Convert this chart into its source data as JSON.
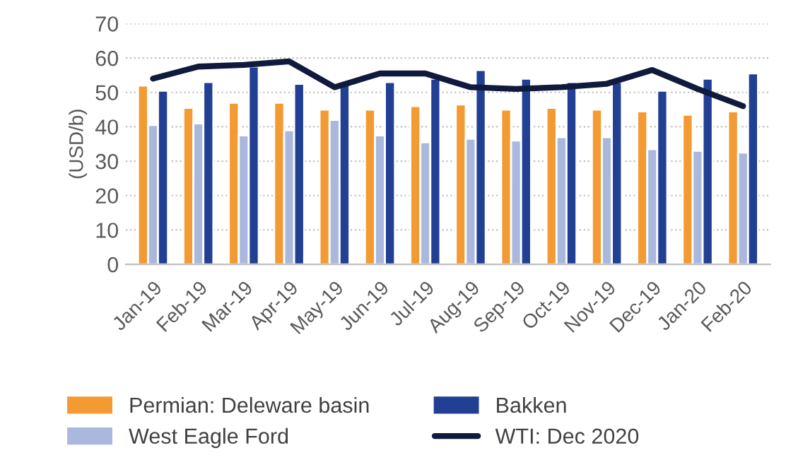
{
  "chart_data": {
    "type": "bar",
    "ylabel": "(USD/b)",
    "categories": [
      "Jan-19",
      "Feb-19",
      "Mar-19",
      "Apr-19",
      "May-19",
      "Jun-19",
      "Jul-19",
      "Aug-19",
      "Sep-19",
      "Oct-19",
      "Nov-19",
      "Dec-19",
      "Jan-20",
      "Feb-20"
    ],
    "series": [
      {
        "name": "Permian: Deleware basin",
        "color": "#f39a32",
        "values": [
          52,
          45.5,
          47,
          47,
          45,
          45,
          46,
          46.5,
          45,
          45.5,
          45,
          44.5,
          43.5,
          44.5
        ]
      },
      {
        "name": "West Eagle Ford",
        "color": "#a9b8dc",
        "values": [
          40.5,
          41,
          37.5,
          39,
          42,
          37.5,
          35.5,
          36.5,
          36,
          37,
          37,
          33.5,
          33,
          32.5
        ]
      },
      {
        "name": "Bakken",
        "color": "#213f93",
        "values": [
          50.5,
          53,
          57.5,
          52.5,
          52.5,
          53,
          54,
          56.5,
          54,
          53,
          53,
          50.5,
          54,
          55.5
        ]
      },
      {
        "name": "WTI: Dec 2020",
        "color": "#0f1a3c",
        "type": "line",
        "values": [
          54,
          57.5,
          58,
          59,
          51.5,
          55.5,
          55.5,
          51.5,
          51,
          51.5,
          52.5,
          56.5,
          51,
          46
        ]
      }
    ],
    "ylim": [
      0,
      70
    ],
    "yticks": [
      0,
      10,
      20,
      30,
      40,
      50,
      60,
      70
    ],
    "grid": "y",
    "legend": "bottom",
    "line_style": "solid",
    "marker": "none"
  }
}
